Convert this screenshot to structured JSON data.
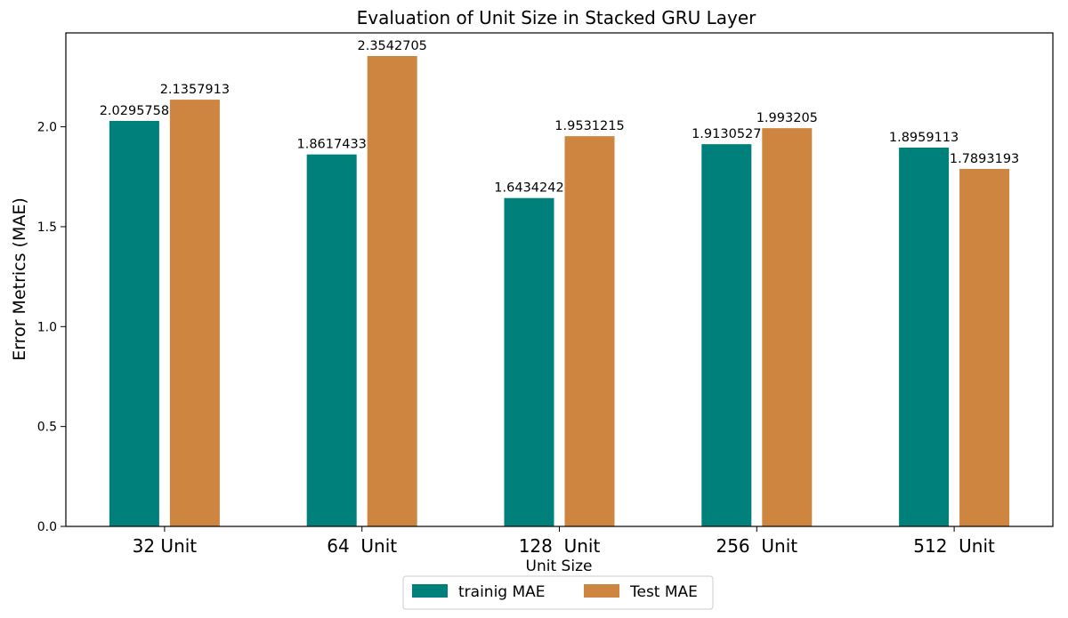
{
  "chart_data": {
    "type": "bar",
    "title": "Evaluation of Unit Size in Stacked GRU Layer",
    "xlabel": "Unit Size",
    "ylabel": "Error Metrics (MAE)",
    "categories": [
      "32 Unit",
      "64  Unit",
      "128  Unit",
      "256  Unit",
      "512  Unit"
    ],
    "series": [
      {
        "name": "trainig MAE",
        "color": "#00807a",
        "values": [
          2.0295758,
          1.8617433,
          1.6434242,
          1.9130527,
          1.8959113
        ],
        "labels": [
          "2.0295758",
          "1.8617433",
          "1.6434242",
          "1.9130527",
          "1.8959113"
        ]
      },
      {
        "name": "Test MAE",
        "color": "#cd853f",
        "values": [
          2.1357913,
          2.3542705,
          1.9531215,
          1.993205,
          1.7893193
        ],
        "labels": [
          "2.1357913",
          "2.3542705",
          "1.9531215",
          "1.993205",
          "1.7893193"
        ]
      }
    ],
    "yticks": [
      "0.0",
      "0.5",
      "1.0",
      "1.5",
      "2.0"
    ],
    "ytick_values": [
      0,
      0.5,
      1.0,
      1.5,
      2.0
    ],
    "ylim": [
      0,
      2.47
    ],
    "grid": false,
    "legend_position": "bottom-center"
  }
}
